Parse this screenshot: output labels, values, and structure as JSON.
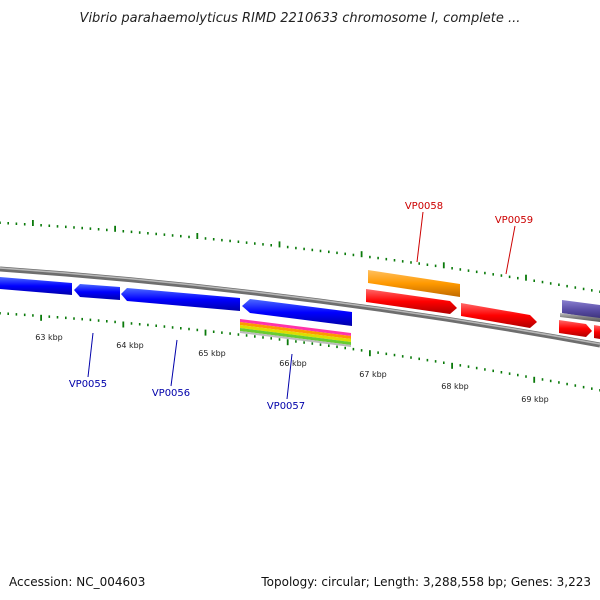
{
  "title": "Vibrio parahaemolyticus RIMD 2210633 chromosome I, complete ...",
  "footer": {
    "accession": "Accession: NC_004603",
    "summary": "Topology: circular; Length: 3,288,558 bp; Genes: 3,223"
  },
  "scale_labels": [
    "63 kbp",
    "64 kbp",
    "65 kbp",
    "66 kbp",
    "67 kbp",
    "68 kbp",
    "69 kbp"
  ],
  "gene_labels": [
    {
      "name": "VP0055",
      "strand": "reverse",
      "color": "#0000aa"
    },
    {
      "name": "VP0056",
      "strand": "reverse",
      "color": "#0000aa"
    },
    {
      "name": "VP0057",
      "strand": "reverse",
      "color": "#0000aa"
    },
    {
      "name": "VP0058",
      "strand": "forward",
      "color": "#cc0000"
    },
    {
      "name": "VP0059",
      "strand": "forward",
      "color": "#cc0000"
    }
  ],
  "colors": {
    "forward_gene": "#ff0000",
    "reverse_gene": "#0000ff",
    "orange_feature": "#ff9900",
    "purple_feature": "#5b4fa8",
    "backbone": "#808080",
    "tick": "#0a7a0a"
  }
}
